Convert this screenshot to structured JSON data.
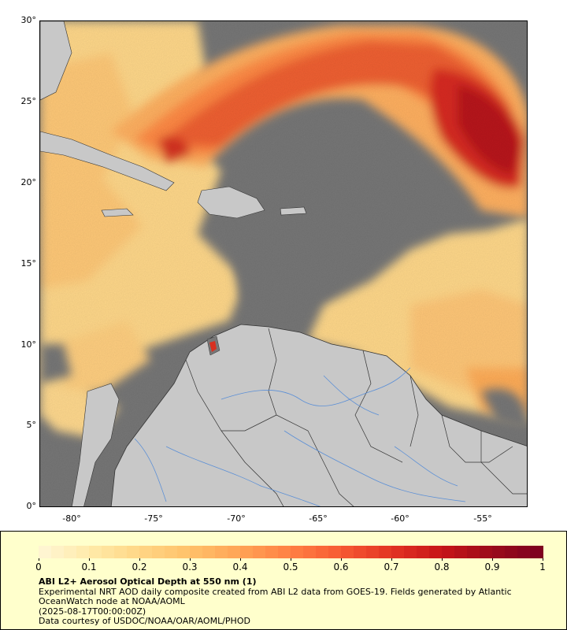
{
  "map": {
    "lat_ticks": [
      "30°",
      "25°",
      "20°",
      "15°",
      "10°",
      "5°",
      "0°"
    ],
    "lon_ticks": [
      "-80°",
      "-75°",
      "-70°",
      "-65°",
      "-60°",
      "-55°"
    ],
    "colors": {
      "no_data": "#777777",
      "land": "#c8c8c8",
      "borders": "#333333",
      "rivers": "#5b8fd6"
    }
  },
  "legend": {
    "colorbar_labels": [
      "0",
      "0.1",
      "0.2",
      "0.3",
      "0.4",
      "0.5",
      "0.6",
      "0.7",
      "0.8",
      "0.9",
      "1"
    ],
    "colorbar_colors": [
      "#fff7d6",
      "#ffeaaa",
      "#ffd685",
      "#ffc16a",
      "#ffa355",
      "#ff8044",
      "#f75a33",
      "#e23323",
      "#c61418",
      "#9b0b1a",
      "#7b0020"
    ],
    "title": "ABI L2+ Aerosol Optical Depth at 550 nm (1)",
    "line1": "Experimental NRT AOD daily composite created from ABI L2 data from GOES-19. Fields generated by Atlantic",
    "line2": "OceanWatch node at NOAA/AOML",
    "line3": "(2025-08-17T00:00:00Z)",
    "line4": "Data courtesy of USDOC/NOAA/OAR/AOML/PHOD"
  }
}
